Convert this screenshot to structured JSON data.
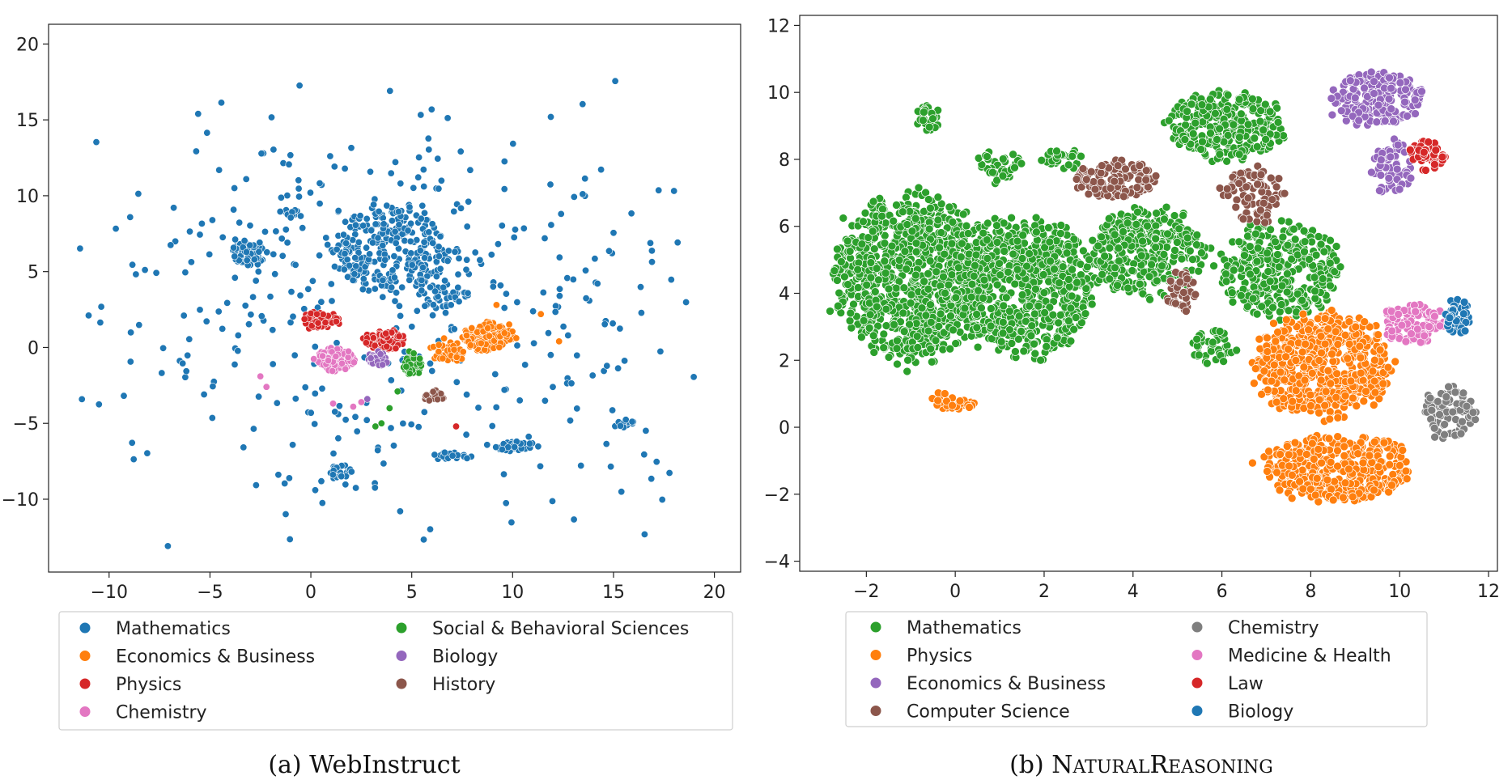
{
  "chart_data": [
    {
      "type": "scatter",
      "caption": "(a) WebInstruct",
      "xlim": [
        -13,
        21.3
      ],
      "ylim": [
        -14.8,
        21.3
      ],
      "xticks": [
        -10,
        -5,
        0,
        5,
        10,
        15,
        20
      ],
      "yticks": [
        -10,
        -5,
        0,
        5,
        10,
        15,
        20
      ],
      "legend_position": "below",
      "legend_columns": 2,
      "series": [
        {
          "name": "Mathematics",
          "color": "#1f77b4",
          "clusters": [
            [
              -3,
              6.2,
              1.0,
              0.8,
              70
            ],
            [
              4,
              6.5,
              3.0,
              2.6,
              260
            ],
            [
              6.5,
              3.4,
              1.2,
              0.8,
              40
            ],
            [
              1.5,
              -8.2,
              0.6,
              0.4,
              25
            ],
            [
              10,
              -6.5,
              1.2,
              0.4,
              30
            ],
            [
              7,
              -7.2,
              1.0,
              0.3,
              22
            ],
            [
              -1,
              8.8,
              0.6,
              0.3,
              14
            ],
            [
              15.5,
              -5.0,
              0.6,
              0.3,
              14
            ]
          ],
          "scatter_count": 420,
          "scatter_center": [
            4,
            3
          ],
          "scatter_spread": [
            8,
            7.5
          ],
          "x_range": [
            -11.8,
            19.7
          ],
          "y_range": [
            -13.2,
            19.4
          ]
        },
        {
          "name": "Economics & Business",
          "color": "#ff7f0e",
          "clusters": [
            [
              8.8,
              0.7,
              1.3,
              0.9,
              150
            ],
            [
              6.8,
              -0.3,
              0.9,
              0.7,
              50
            ]
          ],
          "extra_points": [
            [
              9.2,
              2.8
            ],
            [
              11.4,
              2.2
            ],
            [
              12.3,
              0.4
            ],
            [
              6.6,
              0.6
            ]
          ]
        },
        {
          "name": "Physics",
          "color": "#d62728",
          "clusters": [
            [
              0.5,
              1.8,
              0.9,
              0.55,
              80
            ],
            [
              3.7,
              0.5,
              1.1,
              0.6,
              80
            ]
          ],
          "extra_points": [
            [
              7.2,
              -5.2
            ]
          ]
        },
        {
          "name": "Chemistry",
          "color": "#e377c2",
          "clusters": [
            [
              1.2,
              -0.8,
              1.0,
              0.75,
              110
            ]
          ],
          "extra_points": [
            [
              -2.5,
              -1.9
            ],
            [
              -2.2,
              -2.6
            ],
            [
              1.1,
              -3.7
            ],
            [
              2.1,
              -3.9
            ],
            [
              2.5,
              -3.6
            ]
          ]
        },
        {
          "name": "Social & Behavioral Sciences",
          "color": "#2ca02c",
          "clusters": [
            [
              5.0,
              -1.1,
              0.45,
              0.8,
              45
            ]
          ],
          "extra_points": [
            [
              4.3,
              -2.9
            ],
            [
              3.9,
              -4.0
            ],
            [
              3.5,
              -5.0
            ],
            [
              3.2,
              -5.2
            ]
          ]
        },
        {
          "name": "Biology",
          "color": "#9467bd",
          "clusters": [
            [
              3.4,
              -0.8,
              0.5,
              0.5,
              30
            ]
          ],
          "extra_points": [
            [
              2.8,
              -3.4
            ]
          ]
        },
        {
          "name": "History",
          "color": "#8c564b",
          "clusters": [
            [
              6.1,
              -3.2,
              0.5,
              0.35,
              25
            ]
          ]
        }
      ]
    },
    {
      "type": "scatter",
      "caption_prefix": "(b) N",
      "caption_parts": [
        [
          "N",
          "big"
        ],
        [
          "ATURAL",
          "small"
        ],
        [
          "R",
          "big"
        ],
        [
          "EASONING",
          "small"
        ]
      ],
      "xlim": [
        -3.5,
        12.2
      ],
      "ylim": [
        -4.3,
        12.3
      ],
      "xticks": [
        -2,
        0,
        2,
        4,
        6,
        8,
        10,
        12
      ],
      "yticks": [
        -4,
        -2,
        0,
        2,
        4,
        6,
        8,
        10,
        12
      ],
      "legend_position": "below",
      "legend_columns": 2,
      "series": [
        {
          "name": "Mathematics",
          "color": "#2ca02c",
          "clusters": [
            [
              -1.0,
              4.5,
              1.7,
              2.4,
              900
            ],
            [
              1.5,
              4.2,
              1.6,
              2.0,
              700
            ],
            [
              4.3,
              5.2,
              1.3,
              1.3,
              350
            ],
            [
              7.3,
              4.7,
              1.3,
              1.4,
              350
            ],
            [
              6.1,
              9.0,
              1.3,
              1.0,
              300
            ],
            [
              -0.6,
              9.2,
              0.3,
              0.4,
              30
            ],
            [
              2.4,
              8.0,
              0.5,
              0.3,
              30
            ],
            [
              1.0,
              7.8,
              0.5,
              0.5,
              35
            ],
            [
              5.8,
              2.4,
              0.5,
              0.5,
              40
            ]
          ]
        },
        {
          "name": "Physics",
          "color": "#ff7f0e",
          "clusters": [
            [
              8.3,
              1.8,
              1.5,
              1.5,
              600
            ],
            [
              8.6,
              -1.2,
              1.6,
              1.0,
              400
            ],
            [
              0.0,
              0.8,
              0.5,
              0.3,
              30
            ]
          ]
        },
        {
          "name": "Economics & Business",
          "color": "#9467bd",
          "clusters": [
            [
              9.5,
              9.8,
              1.0,
              0.8,
              200
            ],
            [
              9.8,
              7.8,
              0.5,
              0.8,
              60
            ]
          ]
        },
        {
          "name": "Computer Science",
          "color": "#8c564b",
          "clusters": [
            [
              3.6,
              7.4,
              0.9,
              0.55,
              130
            ],
            [
              6.7,
              6.9,
              0.7,
              0.8,
              90
            ],
            [
              5.1,
              4.0,
              0.35,
              0.6,
              40
            ]
          ]
        },
        {
          "name": "Chemistry",
          "color": "#7f7f7f",
          "clusters": [
            [
              11.1,
              0.4,
              0.6,
              0.8,
              90
            ]
          ]
        },
        {
          "name": "Medicine & Health",
          "color": "#e377c2",
          "clusters": [
            [
              10.3,
              3.1,
              0.7,
              0.6,
              100
            ]
          ]
        },
        {
          "name": "Law",
          "color": "#d62728",
          "clusters": [
            [
              10.6,
              8.1,
              0.4,
              0.45,
              50
            ]
          ]
        },
        {
          "name": "Biology",
          "color": "#1f77b4",
          "clusters": [
            [
              11.3,
              3.3,
              0.3,
              0.5,
              45
            ]
          ]
        }
      ]
    }
  ]
}
